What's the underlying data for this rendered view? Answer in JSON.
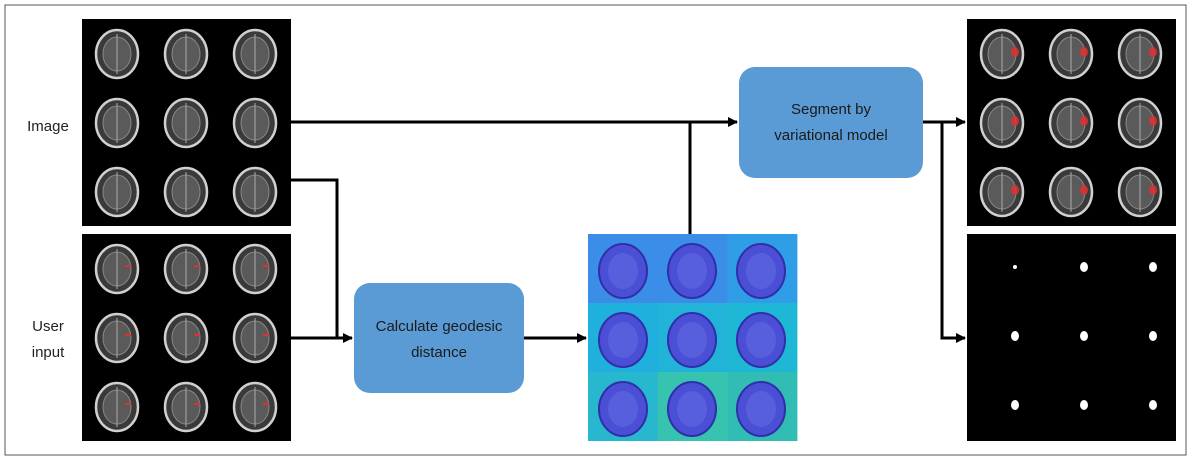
{
  "inputs": {
    "image": "Image",
    "user_input": [
      "User",
      "input"
    ]
  },
  "nodes": [
    {
      "label": [
        "Segment by",
        "variational model"
      ]
    },
    {
      "label": [
        "Calculate geodesic",
        "distance"
      ]
    }
  ]
}
